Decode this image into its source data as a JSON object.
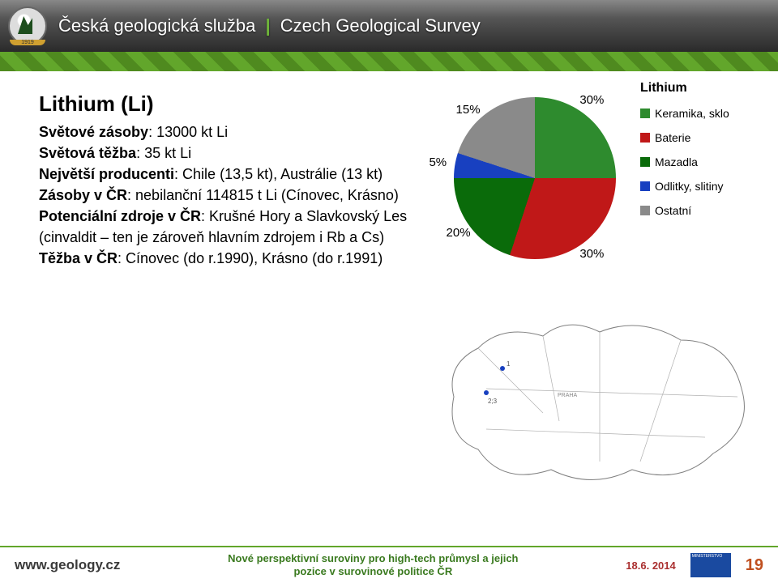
{
  "header": {
    "org_cs": "Česká geologická služba",
    "org_en": "Czech Geological Survey"
  },
  "content": {
    "title": "Lithium (Li)",
    "label_world_reserves": "Světové zásoby",
    "world_reserves": ": 13000 kt Li",
    "label_world_mining": "Světová těžba",
    "world_mining": ": 35 kt Li",
    "label_producers": "Největší producenti",
    "producers": ": Chile (13,5 kt), Austrálie (13 kt)",
    "label_reserves_cr": "Zásoby v ČR",
    "reserves_cr": ": nebilanční 114815 t Li (Cínovec, Krásno)",
    "label_potential": "Potenciální zdroje v ČR",
    "potential": ": Krušné Hory a Slavkovský Les (cinvaldit – ten je zároveň hlavním zdrojem i Rb a Cs)",
    "label_mining_cr": "Těžba v ČR",
    "mining_cr": ": Cínovec (do r.1990), Krásno (do r.1991)"
  },
  "chart": {
    "type": "pie",
    "title": "Lithium",
    "slices": [
      {
        "label": "Keramika, sklo",
        "value": 30,
        "color": "#2e8b2e"
      },
      {
        "label": "Baterie",
        "value": 30,
        "color": "#c01818"
      },
      {
        "label": "Mazadla",
        "value": 20,
        "color": "#0a6b0a"
      },
      {
        "label": "Odlitky, slitiny",
        "value": 5,
        "color": "#1840c0"
      },
      {
        "label": "Ostatní",
        "value": 15,
        "color": "#8a8a8a"
      }
    ],
    "label_fontsize": 15,
    "legend_fontsize": 14,
    "background_color": "#ffffff",
    "start_angle_deg": -18
  },
  "footer": {
    "url": "www.geology.cz",
    "mid_line1": "Nové perspektivní suroviny pro high-tech průmysl a jejich",
    "mid_line2": "pozice v surovinové politice ČR",
    "date": "18.6. 2014",
    "page": "19"
  }
}
